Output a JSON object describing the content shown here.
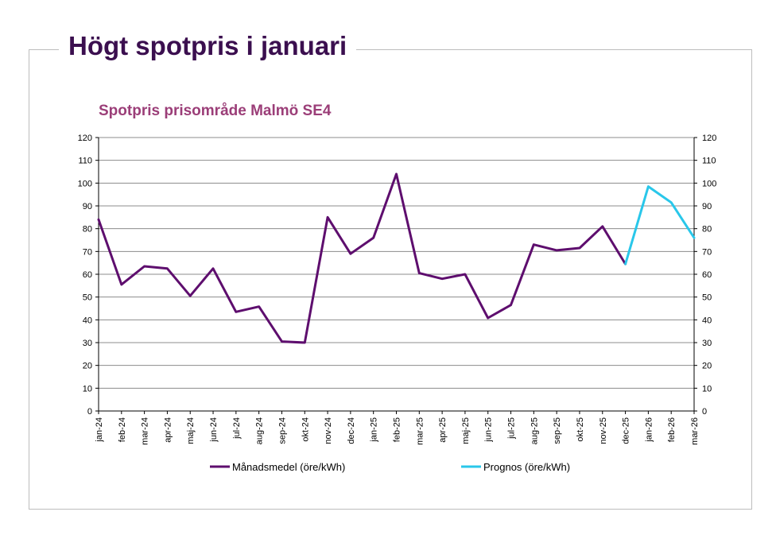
{
  "page": {
    "title": "Högt spotpris i januari"
  },
  "colors": {
    "series_monthly": "#5e0e6e",
    "series_forecast": "#29c7ea",
    "grid": "#8c8c8c",
    "title_chart": "#9b3e78",
    "title_page": "#3b0f4f"
  },
  "chart_data": {
    "type": "line",
    "title": "Spotpris prisområde Malmö SE4",
    "xlabel": "",
    "ylabel": "",
    "ylim": [
      0,
      120
    ],
    "yticks": [
      0,
      10,
      20,
      30,
      40,
      50,
      60,
      70,
      80,
      90,
      100,
      110,
      120
    ],
    "secondary_y_axis": true,
    "grid": true,
    "legend_position": "bottom",
    "categories": [
      "jan-24",
      "feb-24",
      "mar-24",
      "apr-24",
      "maj-24",
      "jun-24",
      "jul-24",
      "aug-24",
      "sep-24",
      "okt-24",
      "nov-24",
      "dec-24",
      "jan-25",
      "feb-25",
      "mar-25",
      "apr-25",
      "maj-25",
      "jun-25",
      "jul-25",
      "aug-25",
      "sep-25",
      "okt-25",
      "nov-25",
      "dec-25",
      "jan-26",
      "feb-26",
      "mar-26"
    ],
    "series": [
      {
        "name": "Månadsmedel (öre/kWh)",
        "color": "#5e0e6e",
        "values": [
          84,
          55.5,
          63.5,
          62.5,
          50.5,
          62.5,
          43.5,
          45.8,
          30.5,
          30,
          85,
          69,
          76,
          104,
          60.5,
          58,
          60,
          40.8,
          46.5,
          73,
          70.5,
          71.5,
          81,
          64.5,
          null,
          null,
          null
        ]
      },
      {
        "name": "Prognos (öre/kWh)",
        "color": "#29c7ea",
        "values": [
          null,
          null,
          null,
          null,
          null,
          null,
          null,
          null,
          null,
          null,
          null,
          null,
          null,
          null,
          null,
          null,
          null,
          null,
          null,
          null,
          null,
          null,
          null,
          64.5,
          98.5,
          91.5,
          76
        ]
      }
    ]
  }
}
